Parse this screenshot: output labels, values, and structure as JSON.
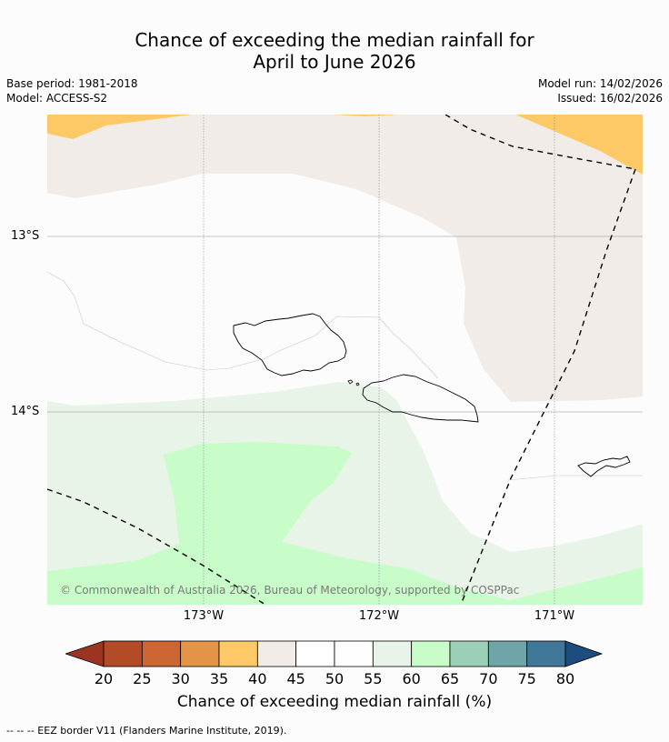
{
  "title": {
    "line1": "Chance of exceeding the median rainfall for",
    "line2": "April to June 2026"
  },
  "meta": {
    "base_period": "Base period: 1981-2018",
    "model": "Model: ACCESS-S2",
    "model_run": "Model run: 14/02/2026",
    "issued": "Issued: 16/02/2026"
  },
  "map": {
    "lat_labels": [
      "13°S",
      "14°S"
    ],
    "lon_labels": [
      "173°W",
      "172°W",
      "171°W"
    ],
    "copyright": "© Commonwealth of Australia 2026, Bureau of Meteorology, supported by COSPPac"
  },
  "colorbar": {
    "ticks": [
      "20",
      "25",
      "30",
      "35",
      "40",
      "45",
      "50",
      "55",
      "60",
      "65",
      "70",
      "75",
      "80"
    ],
    "colors": {
      "below": "#9b3420",
      "bins": [
        "#b34b27",
        "#cd6633",
        "#e29447",
        "#fdc966",
        "#f1ece8",
        "#ffffff",
        "#fdfefd",
        "#e9f4e9",
        "#c8fcc8",
        "#9ccfb7",
        "#6fa4a8",
        "#417799"
      ],
      "above": "#1d4d7e"
    },
    "label": "Chance of exceeding median rainfall (%)"
  },
  "legend": {
    "eez": "-- -- -- EEZ border V11 (Flanders Marine Institute, 2019)."
  }
}
